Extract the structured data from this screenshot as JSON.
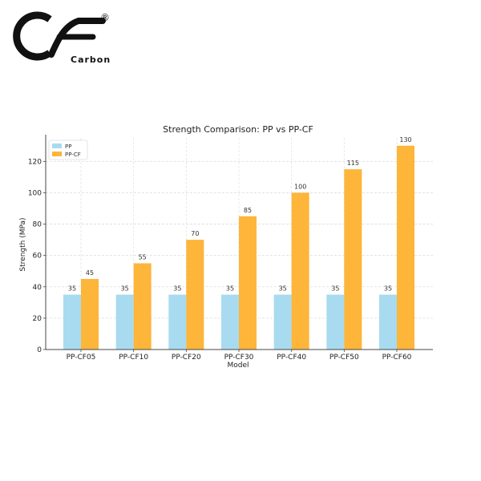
{
  "brand": {
    "logo_letters": "CF",
    "registered_mark": "®",
    "name": "Carbon",
    "color": "#111111"
  },
  "chart_data": {
    "type": "bar",
    "title": "Strength Comparison: PP vs PP-CF",
    "xlabel": "Model",
    "ylabel": "Strength (MPa)",
    "categories": [
      "PP-CF05",
      "PP-CF10",
      "PP-CF20",
      "PP-CF30",
      "PP-CF40",
      "PP-CF50",
      "PP-CF60"
    ],
    "series": [
      {
        "name": "PP",
        "values": [
          35,
          35,
          35,
          35,
          35,
          35,
          35
        ],
        "color": "#a8dbef"
      },
      {
        "name": "PP-CF",
        "values": [
          45,
          55,
          70,
          85,
          100,
          115,
          130
        ],
        "color": "#fdb53a"
      }
    ],
    "ylim": [
      0,
      135
    ],
    "yticks": [
      0,
      20,
      40,
      60,
      80,
      100,
      120
    ],
    "grid": true,
    "legend": "top-left",
    "data_labels": true
  }
}
